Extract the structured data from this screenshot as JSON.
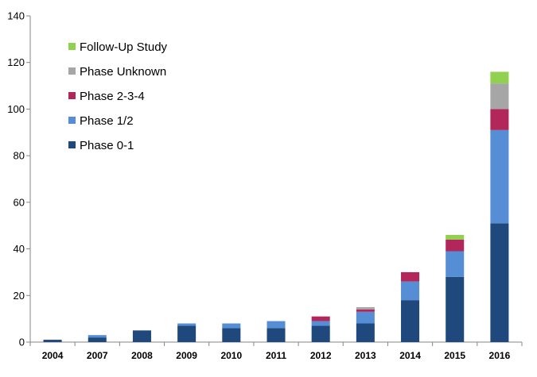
{
  "chart_data": {
    "type": "bar",
    "stacked": true,
    "title": "",
    "xlabel": "",
    "ylabel": "",
    "ylim": [
      0,
      140
    ],
    "yticks": [
      0,
      20,
      40,
      60,
      80,
      100,
      120,
      140
    ],
    "grid": false,
    "legend_position": "top-left",
    "categories": [
      "2004",
      "2007",
      "2008",
      "2009",
      "2010",
      "2011",
      "2012",
      "2013",
      "2014",
      "2015",
      "2016"
    ],
    "series": [
      {
        "name": "Phase 0-1",
        "color": "#1f497d",
        "values": [
          1,
          2,
          5,
          7,
          6,
          6,
          7,
          8,
          18,
          28,
          51
        ]
      },
      {
        "name": "Phase 1/2",
        "color": "#558ed5",
        "values": [
          0,
          1,
          0,
          1,
          2,
          3,
          2,
          5,
          8,
          11,
          40
        ]
      },
      {
        "name": "Phase 2-3-4",
        "color": "#b3265a",
        "values": [
          0,
          0,
          0,
          0,
          0,
          0,
          2,
          1,
          4,
          5,
          9
        ]
      },
      {
        "name": "Phase Unknown",
        "color": "#a6a6a6",
        "values": [
          0,
          0,
          0,
          0,
          0,
          0,
          0,
          1,
          0,
          0,
          11
        ]
      },
      {
        "name": "Follow-Up Study",
        "color": "#92d050",
        "values": [
          0,
          0,
          0,
          0,
          0,
          0,
          0,
          0,
          0,
          2,
          5
        ]
      }
    ],
    "legend_order": [
      "Follow-Up Study",
      "Phase Unknown",
      "Phase 2-3-4",
      "Phase 1/2",
      "Phase 0-1"
    ]
  }
}
